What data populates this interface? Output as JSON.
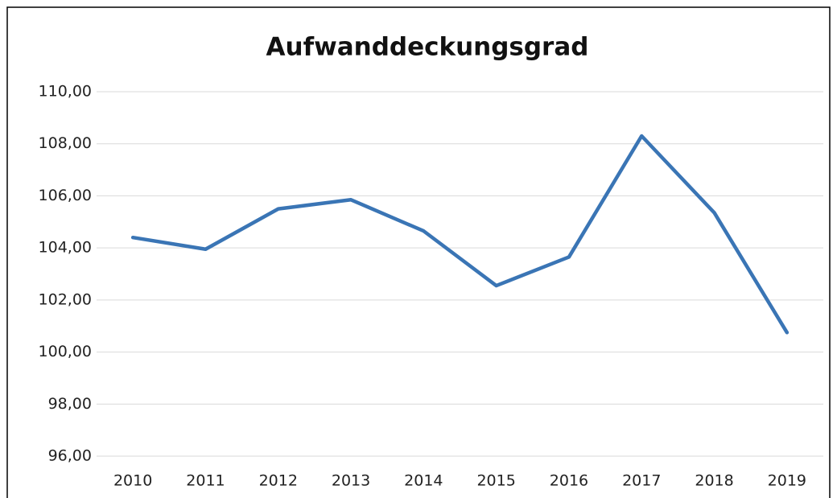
{
  "chart_data": {
    "type": "line",
    "title": "Aufwanddeckungsgrad",
    "categories": [
      "2010",
      "2011",
      "2012",
      "2013",
      "2014",
      "2015",
      "2016",
      "2017",
      "2018",
      "2019"
    ],
    "values": [
      104.4,
      103.95,
      105.5,
      105.85,
      104.65,
      102.55,
      103.65,
      108.3,
      105.35,
      100.75
    ],
    "color": "#3a75b5",
    "ylim": [
      96,
      110
    ],
    "yticks": [
      {
        "value": 96,
        "label": "96,00"
      },
      {
        "value": 98,
        "label": "98,00"
      },
      {
        "value": 100,
        "label": "100,00"
      },
      {
        "value": 102,
        "label": "102,00"
      },
      {
        "value": 104,
        "label": "104,00"
      },
      {
        "value": 106,
        "label": "106,00"
      },
      {
        "value": 108,
        "label": "108,00"
      },
      {
        "value": 110,
        "label": "110,00"
      }
    ],
    "grid": true
  }
}
